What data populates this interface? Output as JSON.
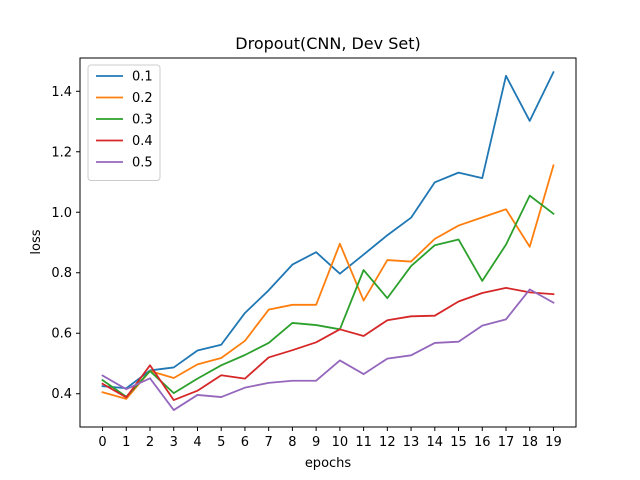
{
  "chart_data": {
    "type": "line",
    "title": "Dropout(CNN, Dev Set)",
    "xlabel": "epochs",
    "ylabel": "loss",
    "x": [
      0,
      1,
      2,
      3,
      4,
      5,
      6,
      7,
      8,
      9,
      10,
      11,
      12,
      13,
      14,
      15,
      16,
      17,
      18,
      19
    ],
    "xlim": [
      -0.95,
      19.95
    ],
    "ylim": [
      0.29,
      1.51
    ],
    "yticks": [
      0.4,
      0.6,
      0.8,
      1.0,
      1.2,
      1.4
    ],
    "ytick_labels": [
      "0.4",
      "0.6",
      "0.8",
      "1.0",
      "1.2",
      "1.4"
    ],
    "grid": false,
    "legend_position": "top-left",
    "series": [
      {
        "name": "0.1",
        "color": "#1f77b4",
        "values": [
          0.425,
          0.418,
          0.477,
          0.487,
          0.543,
          0.562,
          0.667,
          0.742,
          0.827,
          0.868,
          0.797,
          0.86,
          0.924,
          0.982,
          1.099,
          1.131,
          1.113,
          1.451,
          1.302,
          1.463
        ]
      },
      {
        "name": "0.2",
        "color": "#ff7f0e",
        "values": [
          0.405,
          0.383,
          0.475,
          0.452,
          0.497,
          0.518,
          0.575,
          0.678,
          0.694,
          0.694,
          0.896,
          0.708,
          0.842,
          0.837,
          0.912,
          0.956,
          0.983,
          1.01,
          0.886,
          1.155
        ]
      },
      {
        "name": "0.3",
        "color": "#2ca02c",
        "values": [
          0.445,
          0.39,
          0.475,
          0.402,
          0.45,
          0.494,
          0.528,
          0.568,
          0.634,
          0.627,
          0.613,
          0.809,
          0.716,
          0.822,
          0.891,
          0.91,
          0.773,
          0.893,
          1.055,
          0.995
        ]
      },
      {
        "name": "0.4",
        "color": "#d62728",
        "values": [
          0.433,
          0.388,
          0.494,
          0.379,
          0.41,
          0.461,
          0.45,
          0.52,
          0.544,
          0.57,
          0.613,
          0.591,
          0.643,
          0.656,
          0.658,
          0.705,
          0.733,
          0.75,
          0.735,
          0.729
        ]
      },
      {
        "name": "0.5",
        "color": "#9467bd",
        "values": [
          0.46,
          0.415,
          0.451,
          0.346,
          0.396,
          0.389,
          0.42,
          0.436,
          0.443,
          0.443,
          0.51,
          0.465,
          0.516,
          0.527,
          0.568,
          0.572,
          0.625,
          0.646,
          0.745,
          0.701
        ]
      }
    ]
  }
}
